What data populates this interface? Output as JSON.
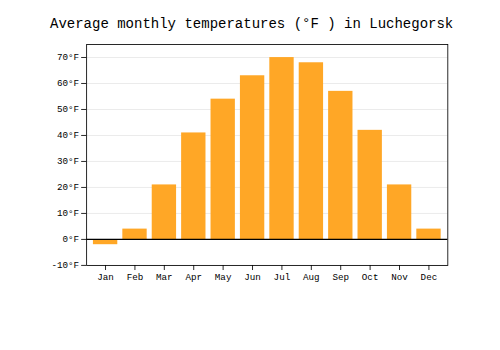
{
  "chart_data": {
    "type": "bar",
    "title": "Average monthly temperatures (°F ) in Luchegorsk",
    "categories": [
      "Jan",
      "Feb",
      "Mar",
      "Apr",
      "May",
      "Jun",
      "Jul",
      "Aug",
      "Sep",
      "Oct",
      "Nov",
      "Dec"
    ],
    "values": [
      -2,
      4,
      21,
      41,
      54,
      63,
      70,
      68,
      57,
      42,
      21,
      4
    ],
    "color": "#FFA726",
    "ylim": [
      -10,
      75
    ],
    "yticks": [
      {
        "value": -10,
        "label": "-10°F"
      },
      {
        "value": 0,
        "label": "0°F"
      },
      {
        "value": 10,
        "label": "10°F"
      },
      {
        "value": 20,
        "label": "20°F"
      },
      {
        "value": 30,
        "label": "30°F"
      },
      {
        "value": 40,
        "label": "40°F"
      },
      {
        "value": 50,
        "label": "50°F"
      },
      {
        "value": 60,
        "label": "60°F"
      },
      {
        "value": 70,
        "label": "70°F"
      }
    ],
    "grid": true
  }
}
